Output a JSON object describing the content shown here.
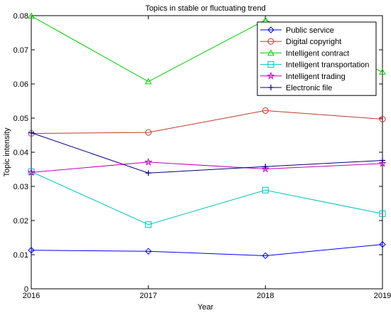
{
  "chart_data": {
    "type": "line",
    "title": "Topics in stable or fluctuating trend",
    "xlabel": "Year",
    "ylabel": "Topic intensity",
    "x": [
      2016,
      2017,
      2018,
      2019
    ],
    "xlim": [
      2016,
      2019
    ],
    "ylim": [
      0,
      0.08
    ],
    "yticks": [
      "0",
      "0.01",
      "0.02",
      "0.03",
      "0.04",
      "0.05",
      "0.06",
      "0.07",
      "0.08"
    ],
    "xticks": [
      "2016",
      "2017",
      "2018",
      "2019"
    ],
    "grid": false,
    "legend_position": "top-right",
    "series": [
      {
        "name": "Public service",
        "color": "#0000ff",
        "marker": "diamond",
        "values": [
          0.0113,
          0.011,
          0.0097,
          0.013
        ]
      },
      {
        "name": "Digital copyright",
        "color": "#c0392b",
        "marker": "circle",
        "values": [
          0.0455,
          0.0458,
          0.0522,
          0.0497
        ]
      },
      {
        "name": "Intelligent contract",
        "color": "#00cc00",
        "marker": "triangle",
        "values": [
          0.0799,
          0.0607,
          0.0787,
          0.0635
        ]
      },
      {
        "name": "Intelligent transportation",
        "color": "#00bfbf",
        "marker": "square",
        "values": [
          0.0343,
          0.0188,
          0.0289,
          0.022
        ]
      },
      {
        "name": "Intelligent trading",
        "color": "#bf00bf",
        "marker": "star",
        "values": [
          0.0341,
          0.0371,
          0.0351,
          0.0367
        ]
      },
      {
        "name": "Electronic file",
        "color": "#000080",
        "marker": "plus",
        "values": [
          0.0457,
          0.0339,
          0.0358,
          0.0376
        ]
      }
    ]
  }
}
